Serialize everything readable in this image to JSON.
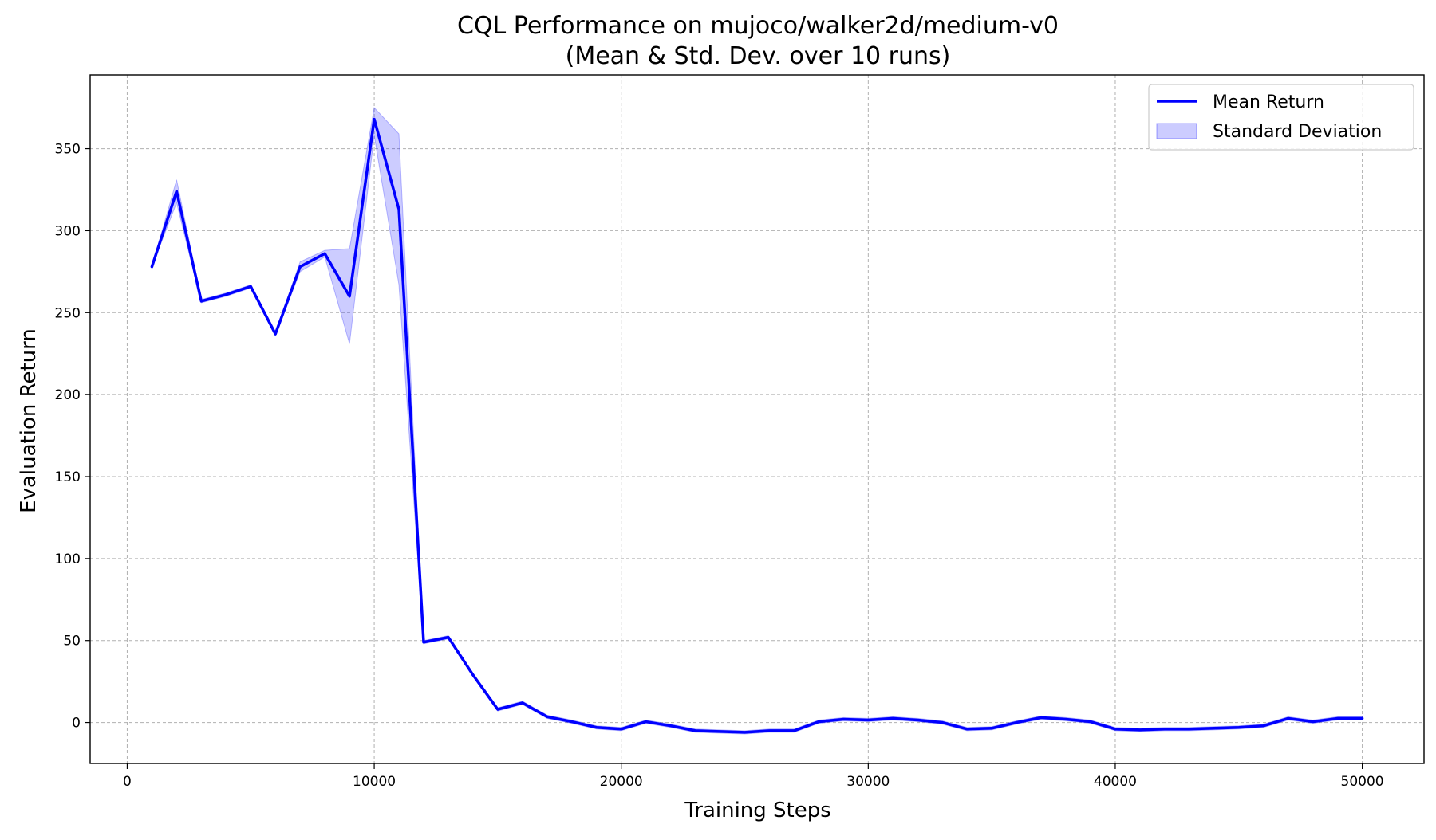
{
  "chart_data": {
    "type": "line",
    "title": "CQL Performance on mujoco/walker2d/medium-v0",
    "subtitle": "(Mean & Std. Dev. over 10 runs)",
    "xlabel": "Training Steps",
    "ylabel": "Evaluation Return",
    "xlim": [
      -1500,
      52500
    ],
    "ylim": [
      -25,
      395
    ],
    "xticks": [
      0,
      10000,
      20000,
      30000,
      40000,
      50000
    ],
    "xtick_labels": [
      "0",
      "10000",
      "20000",
      "30000",
      "40000",
      "50000"
    ],
    "yticks": [
      0,
      50,
      100,
      150,
      200,
      250,
      300,
      350
    ],
    "ytick_labels": [
      "0",
      "50",
      "100",
      "150",
      "200",
      "250",
      "300",
      "350"
    ],
    "grid": true,
    "legend_position": "top-right",
    "legend": {
      "mean_label": "Mean Return",
      "std_label": "Standard Deviation"
    },
    "colors": {
      "mean": "#0000ff",
      "std_fill": "#0000ff"
    },
    "x": [
      1000,
      2000,
      3000,
      4000,
      5000,
      6000,
      7000,
      8000,
      9000,
      10000,
      11000,
      12000,
      13000,
      14000,
      15000,
      16000,
      17000,
      18000,
      19000,
      20000,
      21000,
      22000,
      23000,
      24000,
      25000,
      26000,
      27000,
      28000,
      29000,
      30000,
      31000,
      32000,
      33000,
      34000,
      35000,
      36000,
      37000,
      38000,
      39000,
      40000,
      41000,
      42000,
      43000,
      44000,
      45000,
      46000,
      47000,
      48000,
      49000,
      50000
    ],
    "series": [
      {
        "name": "Mean Return",
        "values": [
          278,
          324,
          257,
          261,
          266,
          237,
          278,
          286,
          260,
          368,
          313,
          49,
          52,
          29,
          8,
          12,
          3.5,
          0.5,
          -3,
          -4,
          0.5,
          -2,
          -5,
          -5.5,
          -6,
          -5,
          -5,
          0.5,
          2,
          1.5,
          2.5,
          1.5,
          0,
          -4,
          -3.5,
          0,
          3,
          2,
          0.5,
          -4,
          -4.5,
          -4,
          -4,
          -3.5,
          -3,
          -2,
          2.5,
          0.5,
          2.5,
          2.5
        ]
      }
    ],
    "std_lower": [
      278,
      317,
      256,
      260,
      265,
      236,
      275,
      284,
      231,
      358,
      267,
      48,
      51,
      28,
      7,
      11,
      2.5,
      -0.5,
      -4,
      -5,
      -0.5,
      -3,
      -6,
      -6.5,
      -7,
      -6,
      -6,
      -0.5,
      1,
      0.5,
      1.5,
      0.5,
      -1,
      -5,
      -4.5,
      -1,
      2,
      1,
      -0.5,
      -5,
      -5.5,
      -5,
      -5,
      -4.5,
      -4,
      -3,
      1.5,
      -0.5,
      1.5,
      1.5
    ],
    "std_upper": [
      278,
      331,
      258,
      262,
      267,
      238,
      281,
      288,
      289,
      375,
      359,
      50,
      53,
      30,
      9,
      13,
      4.5,
      1.5,
      -2,
      -3,
      1.5,
      -1,
      -4,
      -4.5,
      -5,
      -4,
      -4,
      1.5,
      3,
      2.5,
      3.5,
      2.5,
      1,
      -3,
      -2.5,
      1,
      4,
      3,
      1.5,
      -3,
      -3.5,
      -3,
      -3,
      -2.5,
      -2,
      -1,
      3.5,
      1.5,
      3.5,
      3.5
    ]
  }
}
